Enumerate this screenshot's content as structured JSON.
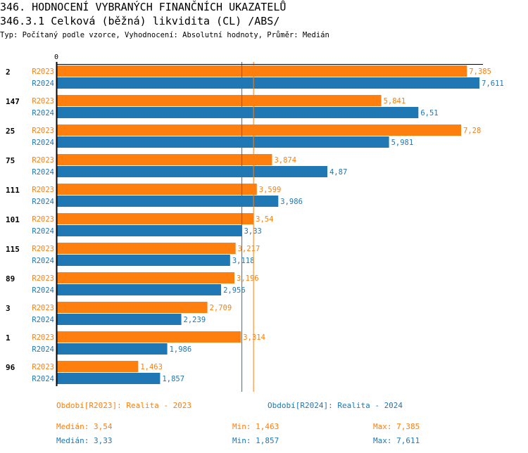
{
  "header": {
    "title": "346. HODNOCENÍ VYBRANÝCH FINANČNÍCH UKAZATELŮ",
    "subtitle": "346.3.1 Celková (běžná) likvidita (CL) /ABS/",
    "info": "Typ: Počítaný podle vzorce, Vyhodnocení: Absolutní hodnoty, Průměr: Medián"
  },
  "chart_data": {
    "type": "bar",
    "orientation": "horizontal",
    "x_tick_label": "0",
    "xlim": [
      0,
      7.7
    ],
    "categories": [
      "2",
      "147",
      "25",
      "75",
      "111",
      "101",
      "115",
      "89",
      "3",
      "1",
      "96"
    ],
    "series": [
      {
        "name": "R2023",
        "color": "#ff7f0e",
        "values": [
          7.385,
          5.841,
          7.28,
          3.874,
          3.599,
          3.54,
          3.217,
          3.196,
          2.709,
          3.314,
          1.463
        ],
        "labels": [
          "7,385",
          "5,841",
          "7,28",
          "3,874",
          "3,599",
          "3,54",
          "3,217",
          "3,196",
          "2,709",
          "3,314",
          "1,463"
        ],
        "median": 3.54
      },
      {
        "name": "R2024",
        "color": "#1f77b4",
        "values": [
          7.611,
          6.51,
          5.981,
          4.87,
          3.986,
          3.33,
          3.118,
          2.956,
          2.239,
          1.986,
          1.857
        ],
        "labels": [
          "7,611",
          "6,51",
          "5,981",
          "4,87",
          "3,986",
          "3,33",
          "3,118",
          "2,956",
          "2,239",
          "1,986",
          "1,857"
        ],
        "median": 3.33
      }
    ]
  },
  "legend": {
    "r2023": "Období[R2023]: Realita - 2023",
    "r2024": "Období[R2024]: Realita - 2024"
  },
  "stats": {
    "r2023": {
      "median": "Medián: 3,54",
      "min": "Min: 1,463",
      "max": "Max: 7,385"
    },
    "r2024": {
      "median": "Medián: 3,33",
      "min": "Min: 1,857",
      "max": "Max: 7,611"
    }
  }
}
